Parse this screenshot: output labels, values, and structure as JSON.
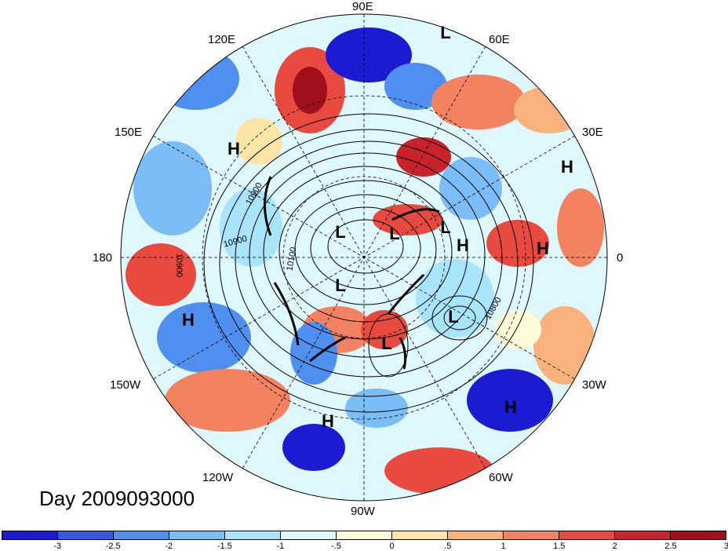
{
  "longitude_labels": {
    "e90": "90E",
    "e60": "60E",
    "e30": "30E",
    "zero": "0",
    "w30": "30W",
    "w60": "60W",
    "w90": "90W",
    "w120": "120W",
    "w150": "150W",
    "dateline": "180",
    "e150": "150E",
    "e120": "120E"
  },
  "pressure_centers": {
    "L1": "L",
    "L2": "L",
    "L3": "L",
    "L4": "L",
    "L5": "L",
    "L6": "L",
    "L7": "L",
    "H1": "H",
    "H2": "H",
    "H3": "H",
    "H4": "H",
    "H5": "H",
    "H6": "H",
    "H7": "H"
  },
  "contour_labels": {
    "c1": "10900",
    "c2": "10900",
    "c3": "10900",
    "c4": "10100",
    "c5": "10800"
  },
  "date_label": "Day 2009093000",
  "colorbar": {
    "colors": [
      "#1c1ad2",
      "#3458e0",
      "#4f8ff0",
      "#7bbdf6",
      "#a8e4fb",
      "#dff8fd",
      "#fffbd9",
      "#fde5a8",
      "#f9b27c",
      "#f38260",
      "#e84a40",
      "#c8222b",
      "#a10f1c"
    ],
    "ticks": [
      "-3",
      "-2.5",
      "-2",
      "-1.5",
      "-1",
      "-.5",
      "0",
      ".5",
      "1",
      "1.5",
      "2",
      "2.5",
      "3"
    ]
  }
}
